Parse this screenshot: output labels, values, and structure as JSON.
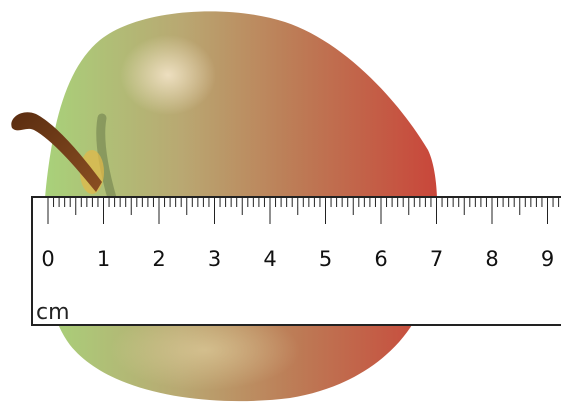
{
  "ruler": {
    "unit_label": "cm",
    "tick_labels": [
      "0",
      "1",
      "2",
      "3",
      "4",
      "5",
      "6",
      "7",
      "8",
      "9"
    ],
    "divisions_per_unit": 10
  },
  "colors": {
    "apple_left": "#a8d27a",
    "apple_right": "#c9463a",
    "stem": "#6b3a18",
    "ruler_fill": "#ffffff",
    "ruler_stroke": "#222222"
  }
}
